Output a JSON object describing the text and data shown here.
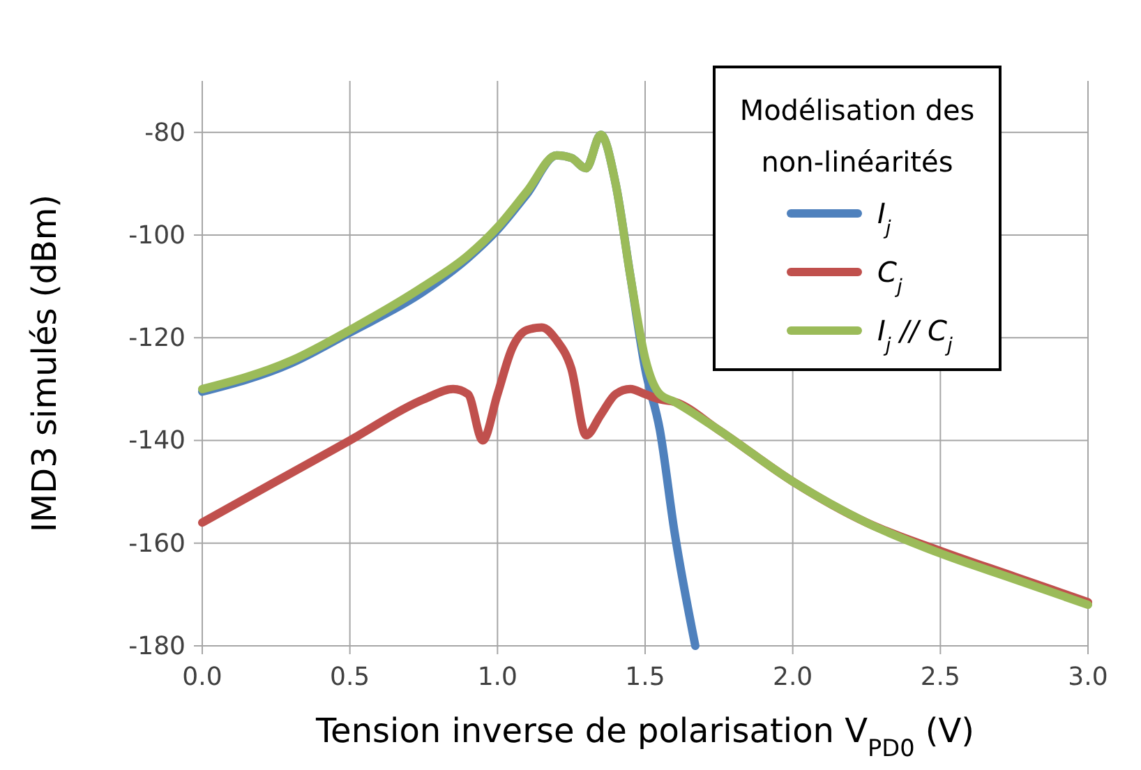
{
  "chart_data": {
    "type": "line",
    "xlabel": "Tension inverse de polarisation V$_{PD0}$ (V)",
    "ylabel": "IMD3 simulés (dBm)",
    "legend_title": "Modélisation des non-linéarités",
    "xlim": [
      0,
      3
    ],
    "xticks": [
      {
        "value": 0,
        "label": "0.0"
      },
      {
        "value": 0.5,
        "label": "0.5"
      },
      {
        "value": 1,
        "label": "1.0"
      },
      {
        "value": 1.5,
        "label": "1.5"
      },
      {
        "value": 2,
        "label": "2.0"
      },
      {
        "value": 2.5,
        "label": "2.5"
      },
      {
        "value": 3,
        "label": "3.0"
      }
    ],
    "ylim": [
      -180,
      -70
    ],
    "yticks": [
      -180,
      -160,
      -140,
      -120,
      -100,
      -80
    ],
    "grid": true,
    "legend": "top right",
    "line_style": "solid",
    "series": [
      {
        "name": "I$_{j}$",
        "color": "#4f81bd",
        "x": [
          0,
          0.3,
          0.5,
          0.75,
          0.9,
          1.0,
          1.1,
          1.2,
          1.25,
          1.3,
          1.35,
          1.4,
          1.45,
          1.5,
          1.55,
          1.6,
          1.67
        ],
        "values": [
          -130.5,
          -125,
          -119,
          -111,
          -104.5,
          -99,
          -92,
          -84.5,
          -85,
          -87,
          -80.5,
          -90,
          -108,
          -126,
          -138,
          -158,
          -180
        ]
      },
      {
        "name": "C$_{j}$",
        "color": "#c0504d",
        "x": [
          0,
          0.25,
          0.5,
          0.75,
          0.85,
          0.9,
          0.95,
          1.0,
          1.05,
          1.1,
          1.15,
          1.2,
          1.25,
          1.3,
          1.35,
          1.4,
          1.45,
          1.5,
          1.55,
          1.6,
          1.75,
          2.0,
          2.25,
          2.5,
          2.75,
          3.0
        ],
        "values": [
          -156,
          -148,
          -140,
          -132,
          -130,
          -131,
          -140,
          -131,
          -122,
          -118.5,
          -118,
          -120.5,
          -126,
          -139,
          -135,
          -131,
          -130,
          -131,
          -132,
          -132.5,
          -138,
          -148,
          -156,
          -161.5,
          -166.5,
          -171.5
        ]
      },
      {
        "name": "I$_{j}$ // C$_{j}$",
        "color": "#9bbb59",
        "x": [
          0,
          0.3,
          0.5,
          0.75,
          0.9,
          1.0,
          1.1,
          1.2,
          1.25,
          1.3,
          1.35,
          1.4,
          1.45,
          1.5,
          1.55,
          1.6,
          1.75,
          2.0,
          2.25,
          2.5,
          2.75,
          3.0
        ],
        "values": [
          -130,
          -124.5,
          -118.5,
          -110,
          -104,
          -98.5,
          -91.5,
          -84.5,
          -85,
          -87,
          -80.5,
          -90,
          -108,
          -124,
          -131,
          -132.5,
          -138,
          -148,
          -156,
          -162,
          -167,
          -172
        ]
      }
    ]
  }
}
